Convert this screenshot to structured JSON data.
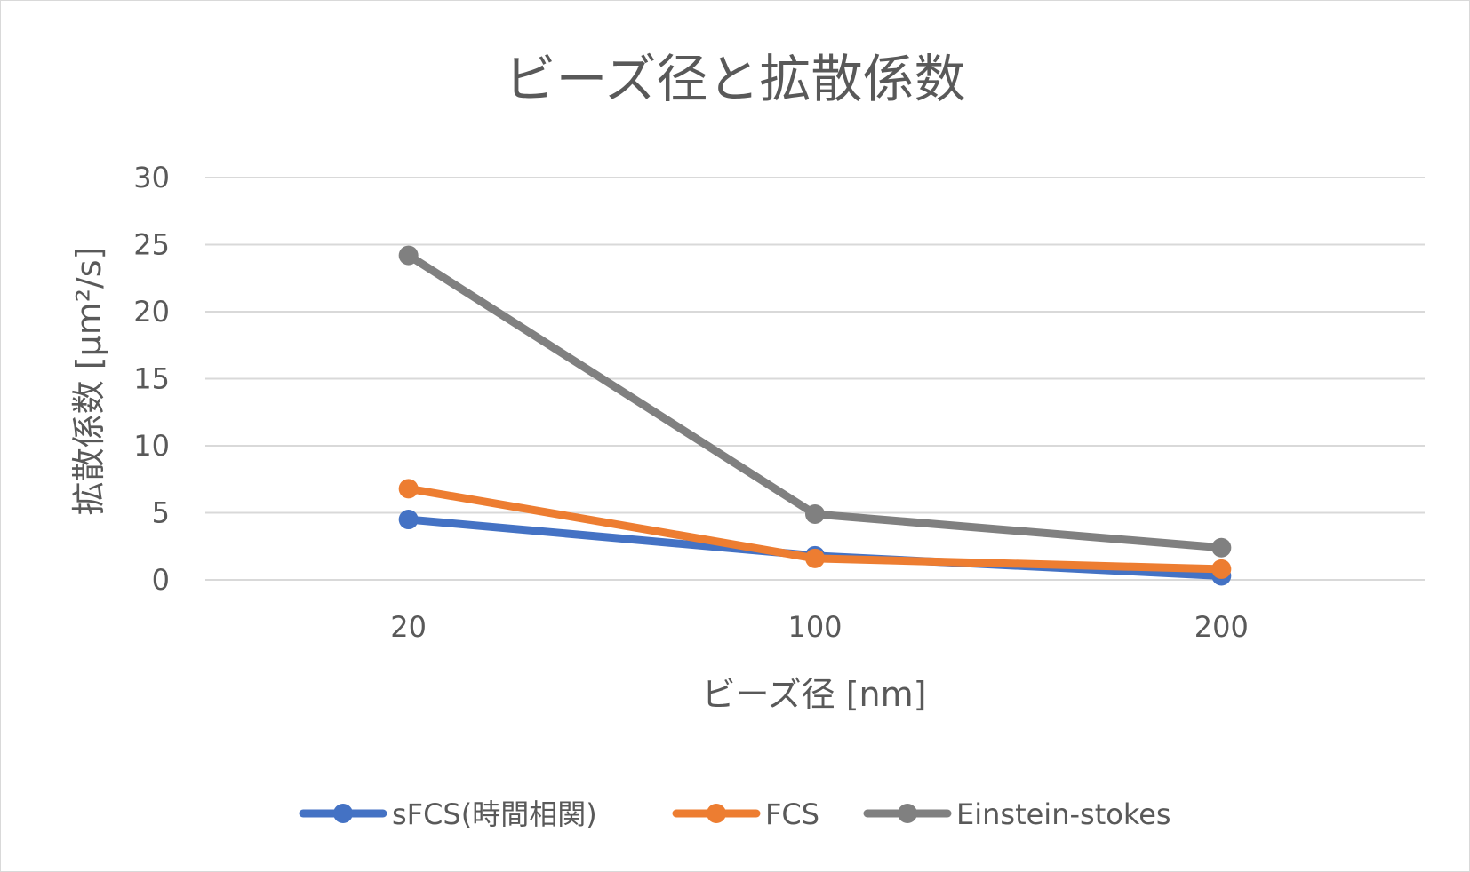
{
  "chart_data": {
    "type": "line",
    "title": "ビーズ径と拡散係数",
    "xlabel": "ビーズ径 [nm]",
    "ylabel": "拡散係数 [μm²/s]",
    "categories": [
      "20",
      "100",
      "200"
    ],
    "ylim": [
      0,
      30
    ],
    "yticks": [
      0,
      5,
      10,
      15,
      20,
      25,
      30
    ],
    "grid": true,
    "legend_position": "bottom",
    "series": [
      {
        "name": "sFCS(時間相関)",
        "values": [
          4.5,
          1.8,
          0.3
        ],
        "color": "#4472c4"
      },
      {
        "name": "FCS",
        "values": [
          6.8,
          1.6,
          0.8
        ],
        "color": "#ed7d31"
      },
      {
        "name": "Einstein-stokes",
        "values": [
          24.2,
          4.9,
          2.4
        ],
        "color": "#808080"
      }
    ]
  }
}
